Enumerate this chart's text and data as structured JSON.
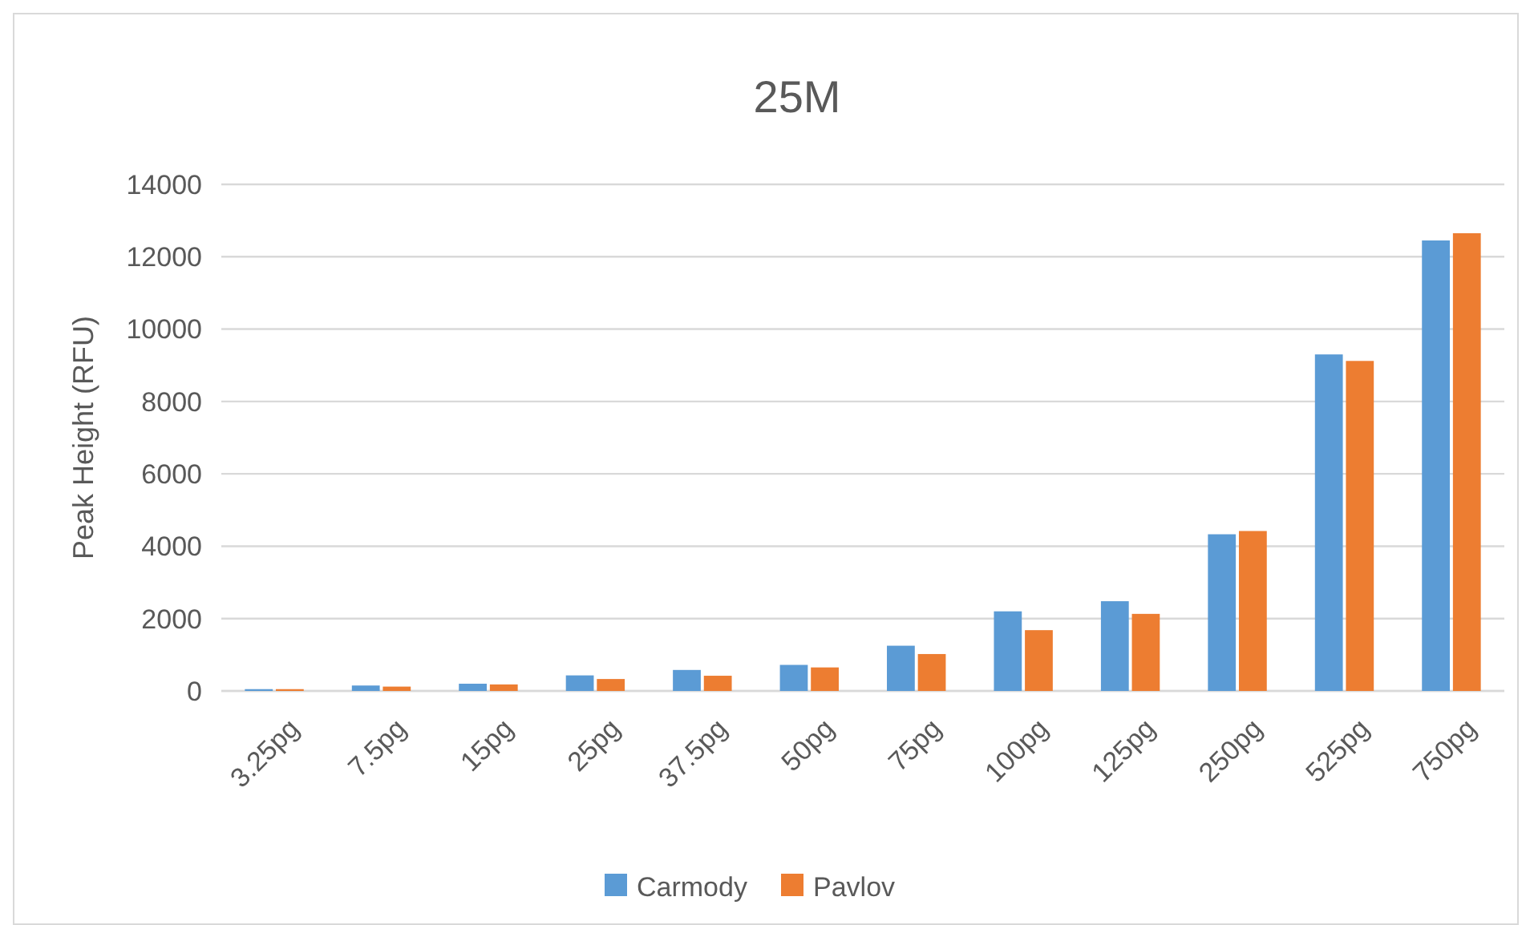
{
  "chart_data": {
    "type": "bar",
    "title": "25M",
    "ylabel": "Peak Height (RFU)",
    "categories": [
      "3.25pg",
      "7.5pg",
      "15pg",
      "25pg",
      "37.5pg",
      "50pg",
      "75pg",
      "100pg",
      "125pg",
      "250pg",
      "525pg",
      "750pg"
    ],
    "series": [
      {
        "name": "Carmody",
        "color": "#5b9bd5",
        "values": [
          50,
          150,
          200,
          430,
          580,
          720,
          1250,
          2200,
          2480,
          4330,
          9300,
          12450
        ]
      },
      {
        "name": "Pavlov",
        "color": "#ed7d31",
        "values": [
          50,
          120,
          180,
          330,
          420,
          650,
          1020,
          1680,
          2130,
          4420,
          9120,
          12650
        ]
      }
    ],
    "ylim": [
      0,
      14000
    ],
    "yticks": [
      0,
      2000,
      4000,
      6000,
      8000,
      10000,
      12000,
      14000
    ],
    "grid": "y",
    "legend": "bottom"
  }
}
